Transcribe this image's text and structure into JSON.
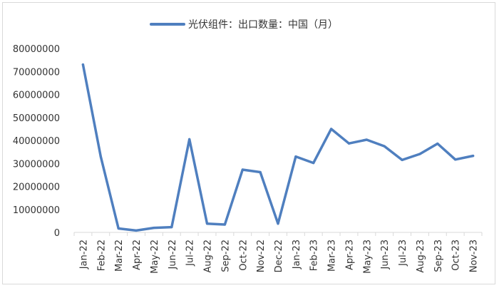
{
  "chart_data": {
    "type": "line",
    "legend_position": "top",
    "grid": false,
    "series": [
      {
        "name": "光伏组件：出口数量：中国（月）",
        "color": "#4f7fbf",
        "values": [
          73000000,
          33000000,
          1700000,
          800000,
          2000000,
          2300000,
          40500000,
          3800000,
          3400000,
          27300000,
          26200000,
          3800000,
          33000000,
          30200000,
          45000000,
          38700000,
          40300000,
          37500000,
          31500000,
          34100000,
          38600000,
          31700000,
          33300000
        ]
      }
    ],
    "categories": [
      "Jan-22",
      "Feb-22",
      "Mar-22",
      "Apr-22",
      "May-22",
      "Jun-22",
      "Jul-22",
      "Aug-22",
      "Sep-22",
      "Oct-22",
      "Nov-22",
      "Dec-22",
      "Jan-23",
      "Feb-23",
      "Mar-23",
      "Apr-23",
      "May-23",
      "Jun-23",
      "Jul-23",
      "Aug-23",
      "Sep-23",
      "Oct-23",
      "Nov-23"
    ],
    "y_ticks": [
      "0",
      "10000000",
      "20000000",
      "30000000",
      "40000000",
      "50000000",
      "60000000",
      "70000000",
      "80000000"
    ],
    "ylim": [
      0,
      80000000
    ]
  }
}
